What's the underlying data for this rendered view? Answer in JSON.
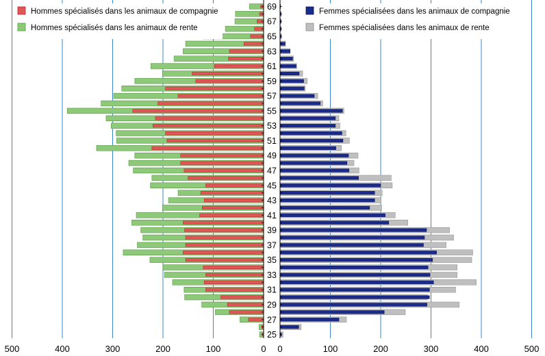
{
  "chart_data": {
    "type": "bar",
    "orientation": "horizontal",
    "layout": "population-pyramid",
    "legend_position": "top",
    "grid": true,
    "x_left_range": [
      0,
      500
    ],
    "x_right_range": [
      0,
      500
    ],
    "x_ticks_left": [
      "500",
      "400",
      "300",
      "200",
      "100",
      "0"
    ],
    "x_ticks_right": [
      "0",
      "100",
      "200",
      "300",
      "400",
      "500"
    ],
    "ages": [
      25,
      26,
      27,
      28,
      29,
      30,
      31,
      32,
      33,
      34,
      35,
      36,
      37,
      38,
      39,
      40,
      41,
      42,
      43,
      44,
      45,
      46,
      47,
      48,
      49,
      50,
      51,
      52,
      53,
      54,
      55,
      56,
      57,
      58,
      59,
      60,
      61,
      62,
      63,
      64,
      65,
      66,
      67,
      68,
      69
    ],
    "age_labels": [
      "25",
      "27",
      "29",
      "31",
      "33",
      "35",
      "37",
      "39",
      "41",
      "43",
      "45",
      "47",
      "49",
      "51",
      "53",
      "55",
      "57",
      "59",
      "61",
      "63",
      "65",
      "67",
      "69"
    ],
    "series": [
      {
        "name": "Hommes spécialisés dans les animaux de compagnie",
        "side": "left",
        "color": "#e05555",
        "values": [
          3,
          4,
          30,
          68,
          72,
          85,
          115,
          118,
          115,
          120,
          155,
          160,
          155,
          155,
          157,
          160,
          127,
          122,
          118,
          125,
          115,
          150,
          158,
          165,
          165,
          222,
          192,
          195,
          220,
          215,
          260,
          210,
          170,
          195,
          135,
          142,
          98,
          70,
          68,
          39,
          26,
          18,
          13,
          8,
          6
        ]
      },
      {
        "name": "Hommes spécialisés dans les animaux de rente",
        "side": "left",
        "color": "#8ec97a",
        "values": [
          8,
          9,
          47,
          96,
          123,
          157,
          158,
          181,
          197,
          200,
          226,
          279,
          251,
          240,
          244,
          262,
          253,
          201,
          189,
          170,
          225,
          222,
          259,
          268,
          256,
          332,
          292,
          293,
          303,
          313,
          390,
          323,
          298,
          282,
          256,
          201,
          224,
          178,
          160,
          155,
          120,
          76,
          57,
          56,
          28
        ]
      },
      {
        "name": "Femmes spécialisées dans les animaux de compagnie",
        "side": "right",
        "color": "#1a2b8c",
        "values": [
          3,
          37,
          117,
          207,
          292,
          297,
          297,
          305,
          298,
          294,
          303,
          311,
          285,
          287,
          291,
          216,
          209,
          178,
          188,
          188,
          200,
          156,
          137,
          133,
          136,
          111,
          125,
          123,
          110,
          110,
          124,
          80,
          68,
          48,
          47,
          38,
          32,
          25,
          20,
          10,
          2,
          2,
          2,
          2,
          1
        ]
      },
      {
        "name": "Femmes spécialisées dans les animaux de rente",
        "side": "right",
        "color": "#bfbfbf",
        "values": [
          6,
          42,
          132,
          249,
          356,
          293,
          349,
          390,
          352,
          352,
          381,
          383,
          330,
          345,
          337,
          254,
          229,
          202,
          201,
          203,
          223,
          221,
          157,
          147,
          155,
          122,
          138,
          131,
          119,
          117,
          127,
          85,
          75,
          50,
          54,
          45,
          33,
          27,
          20,
          11,
          3,
          2,
          2,
          2,
          1
        ]
      }
    ]
  }
}
